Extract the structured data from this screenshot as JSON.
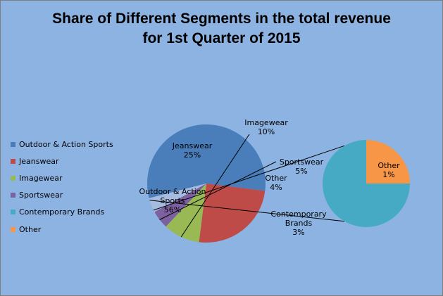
{
  "chart_data": {
    "type": "pie",
    "subtype": "pie-of-pie",
    "title_lines": [
      "Share of Different Segments in the total revenue",
      "for 1st Quarter of 2015"
    ],
    "categories": [
      "Outdoor & Action Sports",
      "Jeanswear",
      "Imagewear",
      "Sportswear",
      "Contemporary Brands",
      "Other"
    ],
    "values": [
      56,
      25,
      10,
      5,
      3,
      1
    ],
    "data_labels": [
      "56%",
      "25%",
      "10%",
      "5%",
      "3%",
      "1%"
    ],
    "colors": [
      "#4a7ebb",
      "#be4b48",
      "#98b954",
      "#7d60a0",
      "#46aac5",
      "#f79646"
    ],
    "main_pie_other": {
      "label": "Other",
      "value": 4,
      "data_label": "4%",
      "color": "#a5bce0"
    },
    "secondary_pie": [
      "Contemporary Brands",
      "Other"
    ],
    "legend_position": "left",
    "background_color": "#8db3e2"
  }
}
